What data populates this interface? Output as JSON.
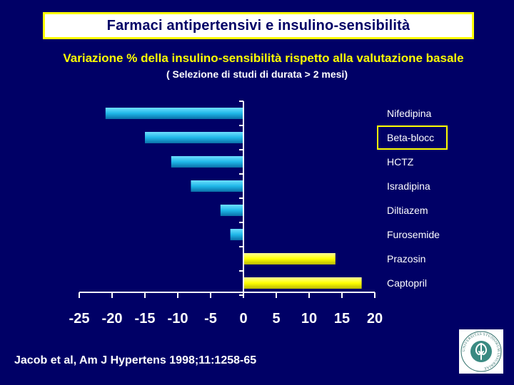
{
  "slide": {
    "title": "Farmaci  antipertensivi e  insulino-sensibilità",
    "subtitle": "Variazione % della insulino-sensibilità rispetto alla valutazione basale",
    "note": "( Selezione di studi di durata > 2 mesi)",
    "citation": "Jacob et al, Am J Hypertens 1998;11:1258-65"
  },
  "logo": {
    "text": "UNIVERSITAS STUDIORUM INSUBRIAE"
  },
  "colors": {
    "background": "#000066",
    "negative_bar": "#1fb8e8",
    "positive_bar": "#ffff00",
    "highlight_box": "#ffff00",
    "axis": "#ffffff"
  },
  "chart_data": {
    "type": "bar",
    "orientation": "horizontal",
    "categories": [
      "Nifedipina",
      "Beta-blocc",
      "HCTZ",
      "Isradipina",
      "Diltiazem",
      "Furosemide",
      "Prazosin",
      "Captopril"
    ],
    "values": [
      -21,
      -15,
      -11,
      -8,
      -3.5,
      -2,
      14,
      18
    ],
    "xlim": [
      -25,
      20
    ],
    "xticks": [
      -25,
      -20,
      -15,
      -10,
      -5,
      0,
      5,
      10,
      15,
      20
    ],
    "highlighted_category": "Beta-blocc",
    "title": "",
    "xlabel": "",
    "ylabel": ""
  }
}
